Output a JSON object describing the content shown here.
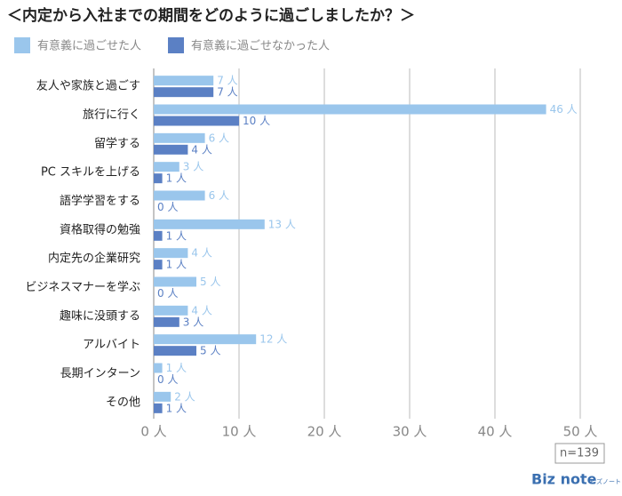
{
  "chart_data": {
    "type": "bar",
    "orientation": "horizontal",
    "title": "＜内定から入社までの期間をどのように過ごしましたか？＞",
    "categories": [
      "友人や家族と過ごす",
      "旅行に行く",
      "留学する",
      "PC スキルを上げる",
      "語学学習をする",
      "資格取得の勉強",
      "内定先の企業研究",
      "ビジネスマナーを学ぶ",
      "趣味に没頭する",
      "アルバイト",
      "長期インターン",
      "その他"
    ],
    "series": [
      {
        "name": "有意義に過ごせた人",
        "color": "#9ac6ec",
        "values": [
          7,
          46,
          6,
          3,
          6,
          13,
          4,
          5,
          4,
          12,
          1,
          2
        ],
        "value_labels": [
          "7 人",
          "46 人",
          "6 人",
          "3 人",
          "6 人",
          "13 人",
          "4 人",
          "5 人",
          "4 人",
          "12 人",
          "1 人",
          "2 人"
        ]
      },
      {
        "name": "有意義に過ごせなかった人",
        "color": "#5b80c4",
        "values": [
          7,
          10,
          4,
          1,
          0,
          1,
          1,
          0,
          3,
          5,
          0,
          1
        ],
        "value_labels": [
          "7 人",
          "10 人",
          "4 人",
          "1 人",
          "0 人",
          "1 人",
          "1 人",
          "0 人",
          "3 人",
          "5 人",
          "0 人",
          "1 人"
        ]
      }
    ],
    "xlim": [
      0,
      50
    ],
    "xticks": [
      {
        "value": 0,
        "label": "0 人"
      },
      {
        "value": 10,
        "label": "10 人"
      },
      {
        "value": 20,
        "label": "20 人"
      },
      {
        "value": 30,
        "label": "30 人"
      },
      {
        "value": 40,
        "label": "40 人"
      },
      {
        "value": 50,
        "label": "50 人"
      }
    ],
    "grid": true,
    "legend_position": "top-left",
    "annotation": "n=139",
    "logo": "Biz note",
    "logo_sub": "ビズノート"
  }
}
